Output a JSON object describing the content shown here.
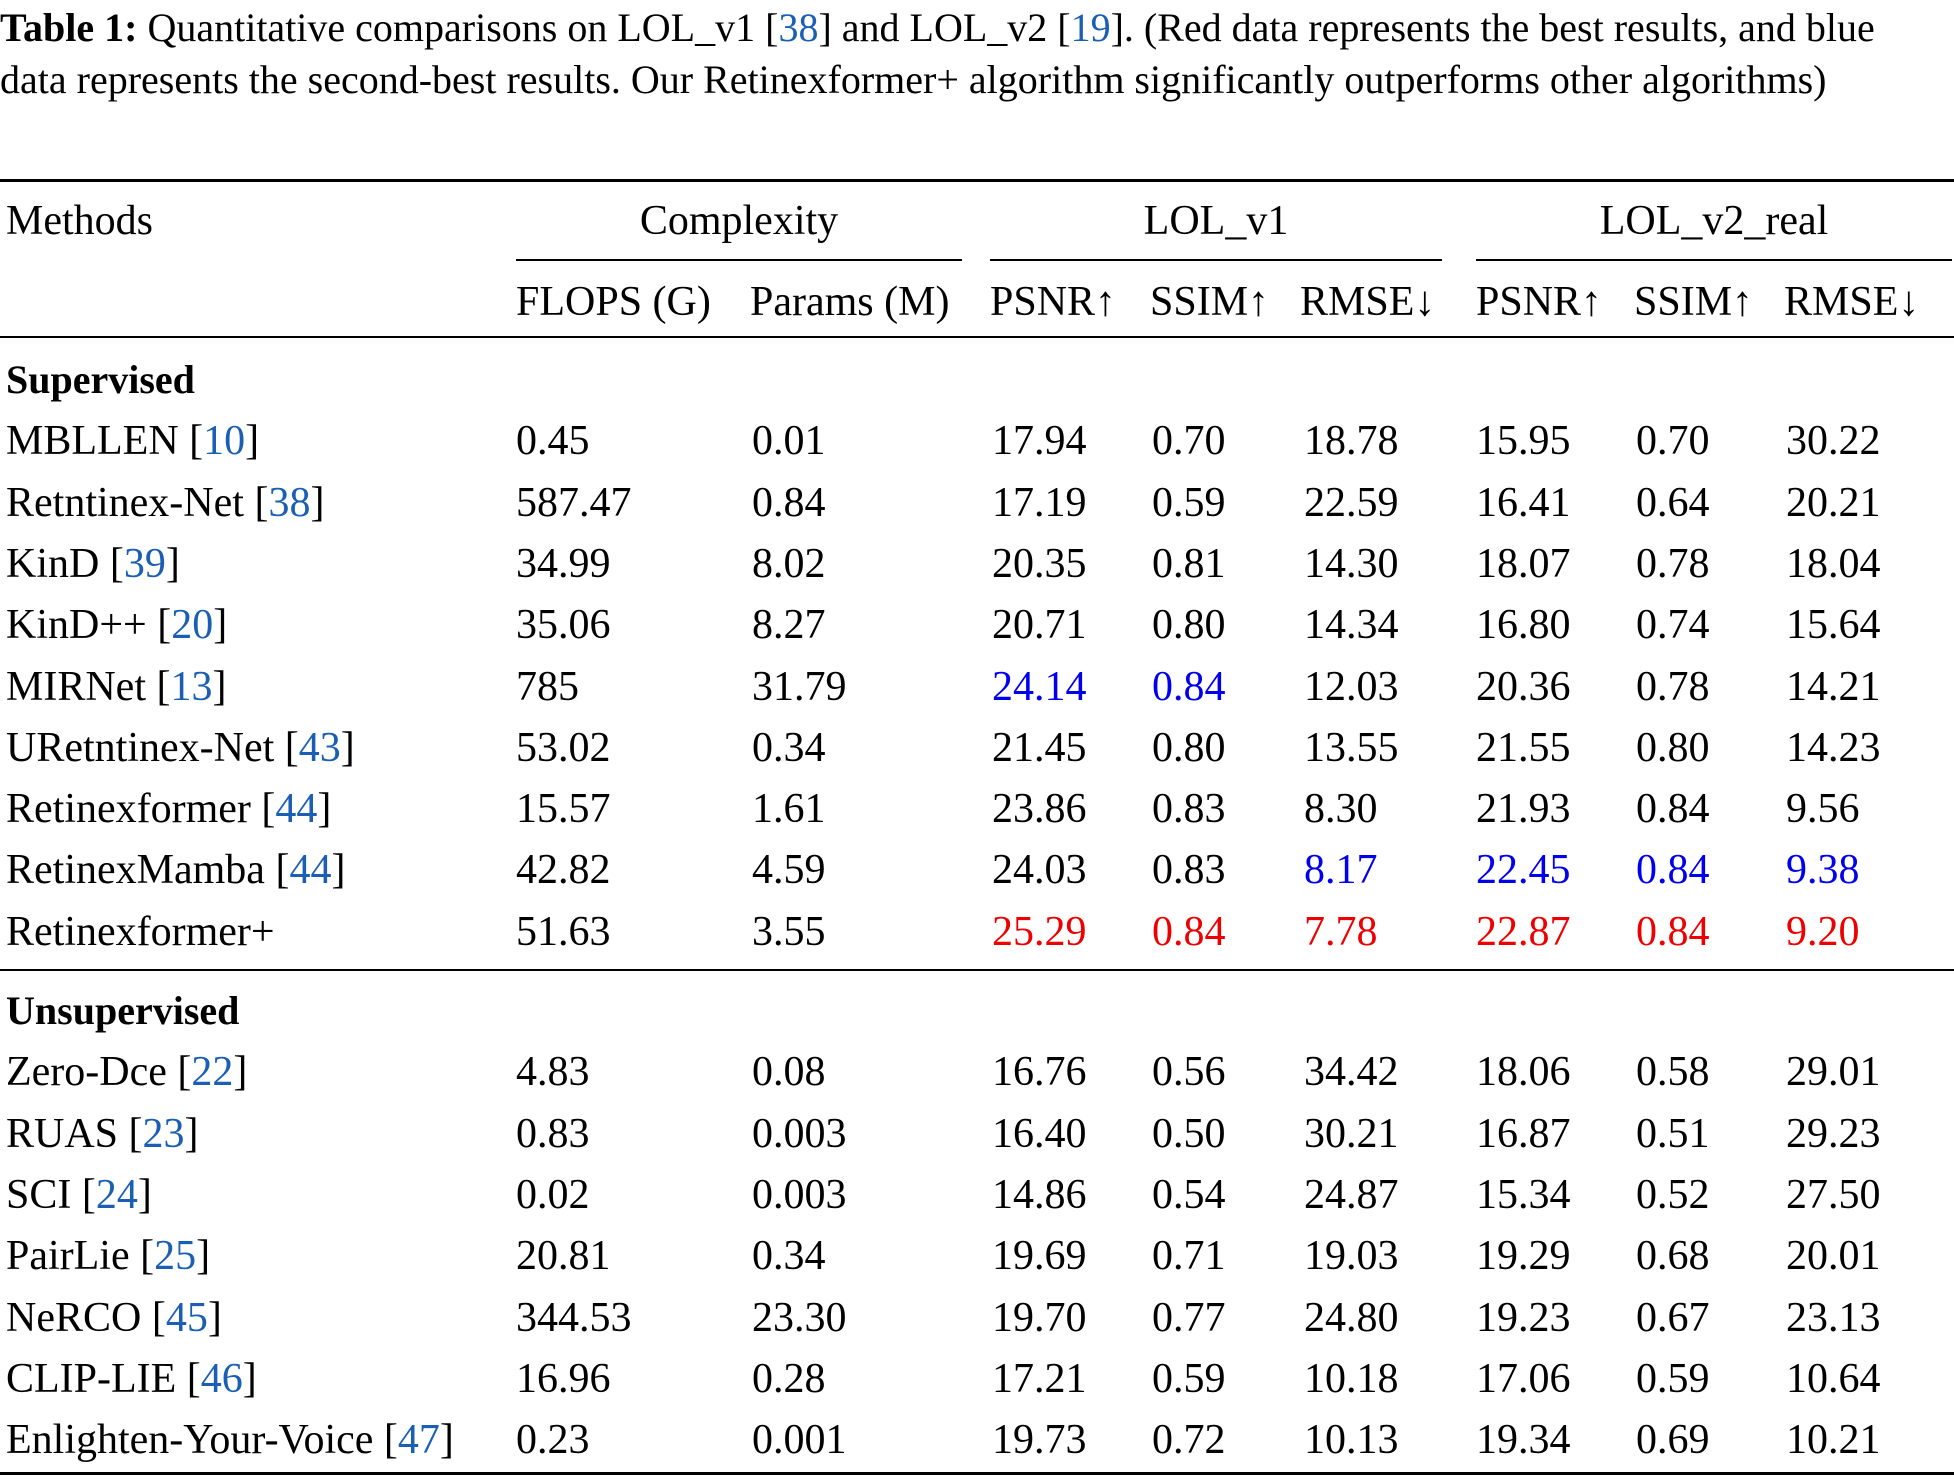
{
  "caption": {
    "label": "Table 1:",
    "part1": " Quantitative comparisons on LOL_v1 [",
    "ref1": "38",
    "part2": "] and LOL_v2 [",
    "ref2": "19",
    "part3": "]. (Red data represents the best results, and blue data represents the second-best results. Our Retinexformer+ algorithm significantly outperforms other algorithms)"
  },
  "headers": {
    "methods": "Methods",
    "groups": [
      "Complexity",
      "LOL_v1",
      "LOL_v2_real"
    ],
    "columns": [
      "FLOPS (G)",
      "Params (M)",
      "PSNR↑",
      "SSIM↑",
      "RMSE↓",
      "PSNR↑",
      "SSIM↑",
      "RMSE↓"
    ]
  },
  "highlight_colors": {
    "best": "#ee0000",
    "second_best": "#0000ee",
    "reference": "#1a5fb4"
  },
  "sections": [
    {
      "title": "Supervised",
      "rows": [
        {
          "method": "MBLLEN",
          "ref": "10",
          "values": [
            "0.45",
            "0.01",
            "17.94",
            "0.70",
            "18.78",
            "15.95",
            "0.70",
            "30.22"
          ],
          "styles": [
            "",
            "",
            "",
            "",
            "",
            "",
            "",
            ""
          ]
        },
        {
          "method": "Retntinex-Net",
          "ref": "38",
          "values": [
            "587.47",
            "0.84",
            "17.19",
            "0.59",
            "22.59",
            "16.41",
            "0.64",
            "20.21"
          ],
          "styles": [
            "",
            "",
            "",
            "",
            "",
            "",
            "",
            ""
          ]
        },
        {
          "method": "KinD",
          "ref": "39",
          "values": [
            "34.99",
            "8.02",
            "20.35",
            "0.81",
            "14.30",
            "18.07",
            "0.78",
            "18.04"
          ],
          "styles": [
            "",
            "",
            "",
            "",
            "",
            "",
            "",
            ""
          ]
        },
        {
          "method": "KinD++",
          "ref": "20",
          "values": [
            "35.06",
            "8.27",
            "20.71",
            "0.80",
            "14.34",
            "16.80",
            "0.74",
            "15.64"
          ],
          "styles": [
            "",
            "",
            "",
            "",
            "",
            "",
            "",
            ""
          ]
        },
        {
          "method": "MIRNet",
          "ref": "13",
          "values": [
            "785",
            "31.79",
            "24.14",
            "0.84",
            "12.03",
            "20.36",
            "0.78",
            "14.21"
          ],
          "styles": [
            "",
            "",
            "second",
            "second",
            "",
            "",
            "",
            ""
          ]
        },
        {
          "method": "URetntinex-Net",
          "ref": "43",
          "values": [
            "53.02",
            "0.34",
            "21.45",
            "0.80",
            "13.55",
            "21.55",
            "0.80",
            "14.23"
          ],
          "styles": [
            "",
            "",
            "",
            "",
            "",
            "",
            "",
            ""
          ]
        },
        {
          "method": "Retinexformer",
          "ref": "44",
          "values": [
            "15.57",
            "1.61",
            "23.86",
            "0.83",
            "8.30",
            "21.93",
            "0.84",
            "9.56"
          ],
          "styles": [
            "",
            "",
            "",
            "",
            "",
            "",
            "",
            ""
          ]
        },
        {
          "method": "RetinexMamba",
          "ref": "44",
          "values": [
            "42.82",
            "4.59",
            "24.03",
            "0.83",
            "8.17",
            "22.45",
            "0.84",
            "9.38"
          ],
          "styles": [
            "",
            "",
            "",
            "",
            "second",
            "second",
            "second",
            "second"
          ]
        },
        {
          "method": "Retinexformer+",
          "ref": "",
          "values": [
            "51.63",
            "3.55",
            "25.29",
            "0.84",
            "7.78",
            "22.87",
            "0.84",
            "9.20"
          ],
          "styles": [
            "",
            "",
            "best",
            "best",
            "best",
            "best",
            "best",
            "best"
          ]
        }
      ]
    },
    {
      "title": "Unsupervised",
      "rows": [
        {
          "method": "Zero-Dce",
          "ref": "22",
          "values": [
            "4.83",
            "0.08",
            "16.76",
            "0.56",
            "34.42",
            "18.06",
            "0.58",
            "29.01"
          ],
          "styles": [
            "",
            "",
            "",
            "",
            "",
            "",
            "",
            ""
          ]
        },
        {
          "method": "RUAS",
          "ref": "23",
          "values": [
            "0.83",
            "0.003",
            "16.40",
            "0.50",
            "30.21",
            "16.87",
            "0.51",
            "29.23"
          ],
          "styles": [
            "",
            "",
            "",
            "",
            "",
            "",
            "",
            ""
          ]
        },
        {
          "method": "SCI",
          "ref": "24",
          "values": [
            "0.02",
            "0.003",
            "14.86",
            "0.54",
            "24.87",
            "15.34",
            "0.52",
            "27.50"
          ],
          "styles": [
            "",
            "",
            "",
            "",
            "",
            "",
            "",
            ""
          ]
        },
        {
          "method": "PairLie",
          "ref": "25",
          "values": [
            "20.81",
            "0.34",
            "19.69",
            "0.71",
            "19.03",
            "19.29",
            "0.68",
            "20.01"
          ],
          "styles": [
            "",
            "",
            "",
            "",
            "",
            "",
            "",
            ""
          ]
        },
        {
          "method": "NeRCO",
          "ref": "45",
          "values": [
            "344.53",
            "23.30",
            "19.70",
            "0.77",
            "24.80",
            "19.23",
            "0.67",
            "23.13"
          ],
          "styles": [
            "",
            "",
            "",
            "",
            "",
            "",
            "",
            ""
          ]
        },
        {
          "method": "CLIP-LIE",
          "ref": "46",
          "values": [
            "16.96",
            "0.28",
            "17.21",
            "0.59",
            "10.18",
            "17.06",
            "0.59",
            "10.64"
          ],
          "styles": [
            "",
            "",
            "",
            "",
            "",
            "",
            "",
            ""
          ]
        },
        {
          "method": "Enlighten-Your-Voice",
          "ref": "47",
          "values": [
            "0.23",
            "0.001",
            "19.73",
            "0.72",
            "10.13",
            "19.34",
            "0.69",
            "10.21"
          ],
          "styles": [
            "",
            "",
            "",
            "",
            "",
            "",
            "",
            ""
          ]
        }
      ]
    }
  ]
}
